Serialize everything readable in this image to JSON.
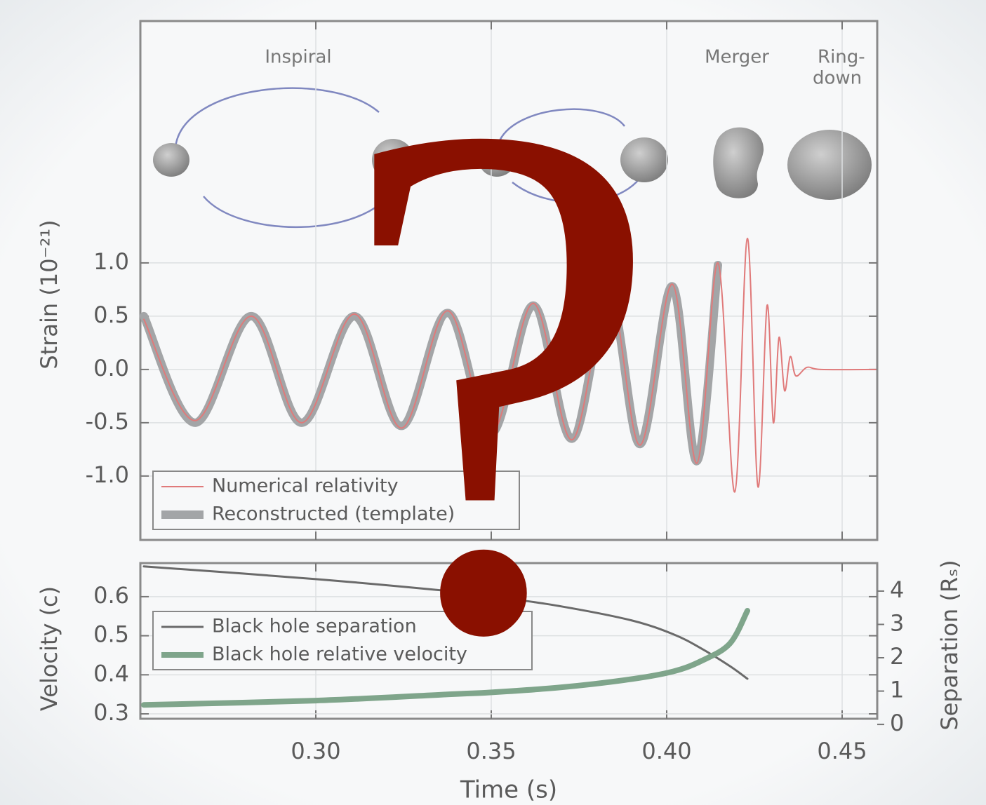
{
  "chart_data": [
    {
      "type": "line",
      "annotations": [
        "Inspiral",
        "Merger",
        "Ring-",
        "down"
      ],
      "ylabel": "Strain (10⁻²¹)",
      "x": [
        0.251,
        0.2656,
        0.2816,
        0.296,
        0.311,
        0.3244,
        0.3376,
        0.35,
        0.362,
        0.373,
        0.3836,
        0.3924,
        0.4016,
        0.4086,
        0.4146,
        0.4194,
        0.423,
        0.426,
        0.4286,
        0.4304,
        0.432,
        0.4336,
        0.4352,
        0.4368,
        0.44,
        0.444,
        0.4596
      ],
      "series": [
        {
          "name": "Reconstructed (template)",
          "color": "#a3a5a7",
          "width": 12,
          "values": [
            0.5,
            -0.5,
            0.5,
            -0.5,
            0.5,
            -0.53,
            0.53,
            -0.6,
            0.6,
            -0.65,
            0.7,
            -0.7,
            0.78,
            -0.86,
            0.98,
            null,
            null,
            null,
            null,
            null,
            null,
            null,
            null,
            null,
            null,
            null,
            null
          ]
        },
        {
          "name": "Numerical relativity",
          "color": "#e07a7a",
          "width": 2,
          "values": [
            0.47,
            -0.48,
            0.5,
            -0.5,
            0.52,
            -0.55,
            0.55,
            -0.6,
            0.62,
            -0.66,
            0.72,
            -0.71,
            0.8,
            -0.88,
            1.0,
            -1.15,
            1.23,
            -1.1,
            0.6,
            -0.5,
            0.3,
            -0.2,
            0.12,
            -0.06,
            0.02,
            0,
            0
          ]
        }
      ],
      "xlim": [
        0.25,
        0.46
      ],
      "ylim": [
        -1.6,
        3.27
      ],
      "xticks": [
        0.3,
        0.35,
        0.4,
        0.45
      ],
      "yticks": [
        {
          "value": -1,
          "label": "-1.0"
        },
        {
          "value": -0.5,
          "label": "-0.5"
        },
        {
          "value": 0,
          "label": "0.0"
        },
        {
          "value": 0.5,
          "label": "0.5"
        },
        {
          "value": 1,
          "label": "1.0"
        }
      ],
      "grid": true,
      "legend": "lower left"
    },
    {
      "type": "line",
      "xlabel": "Time (s)",
      "ylabel": "Velocity (c)",
      "y2label": "Separation (Rₛ)",
      "x": [
        0.251,
        0.3,
        0.338,
        0.35,
        0.37,
        0.39,
        0.402,
        0.41,
        0.418,
        0.423
      ],
      "series": [
        {
          "name": "Black hole separation",
          "color": "#6a6a6a",
          "width": 3,
          "axis": "y2",
          "values": [
            4.74,
            4.36,
            4.0,
            3.85,
            3.54,
            3.12,
            2.7,
            2.27,
            1.75,
            1.37
          ]
        },
        {
          "name": "Black hole relative velocity",
          "color": "#7fa58b",
          "width": 8,
          "values": [
            0.323,
            0.334,
            0.35,
            0.355,
            0.368,
            0.389,
            0.409,
            0.436,
            0.48,
            0.564
          ]
        }
      ],
      "xlim": [
        0.25,
        0.46
      ],
      "ylim": [
        0.2875,
        0.686
      ],
      "y2lim": [
        0.17,
        4.84
      ],
      "xticks": [
        {
          "value": 0.3,
          "label": "0.30"
        },
        {
          "value": 0.35,
          "label": "0.35"
        },
        {
          "value": 0.4,
          "label": "0.40"
        },
        {
          "value": 0.45,
          "label": "0.45"
        }
      ],
      "yticks": [
        0.3,
        0.4,
        0.5,
        0.6
      ],
      "y2ticks": [
        0,
        1,
        2,
        3,
        4
      ],
      "grid": true,
      "legend": "center left"
    }
  ],
  "overlay": "?"
}
